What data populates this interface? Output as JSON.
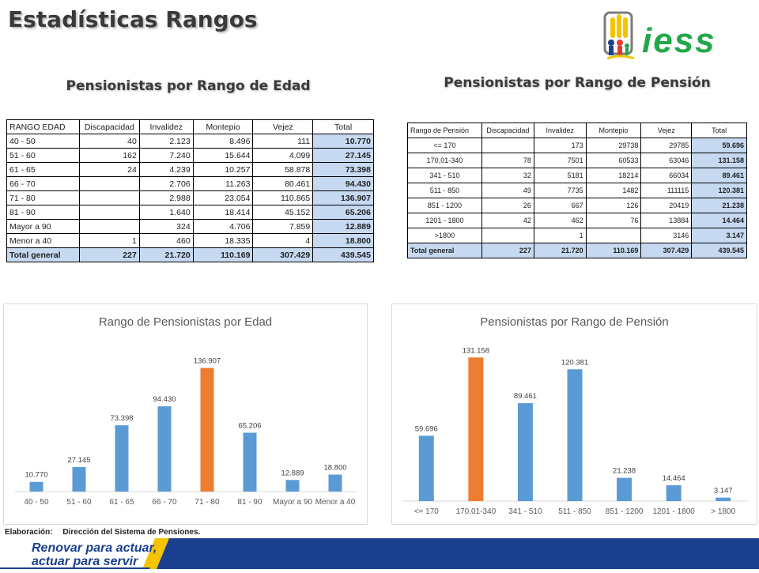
{
  "page": {
    "title": "Estadísticas Rangos",
    "logo_text": "iess",
    "footer_note_label": "Elaboración:",
    "footer_note_text": "Dirección del Sistema de Pensiones.",
    "slogan_line1": "Renovar para actuar,",
    "slogan_line2": "actuar para servir",
    "colors": {
      "bar_blue": "#5b9bd5",
      "bar_orange": "#ed7d31",
      "total_fill": "#c6d9f1",
      "banner_blue": "#1b3f8f",
      "banner_yellow": "#f5c400",
      "logo_green": "#22a849"
    }
  },
  "edad_section": {
    "title": "Pensionistas por Rango de Edad",
    "headers": [
      "RANGO EDAD",
      "Discapacidad",
      "Invalidez",
      "Montepio",
      "Vejez",
      "Total"
    ],
    "rows": [
      [
        "40 - 50",
        "40",
        "2.123",
        "8.496",
        "111",
        "10.770"
      ],
      [
        "51 - 60",
        "162",
        "7.240",
        "15.644",
        "4.099",
        "27.145"
      ],
      [
        "61 - 65",
        "24",
        "4.239",
        "10.257",
        "58.878",
        "73.398"
      ],
      [
        "66 - 70",
        "",
        "2.706",
        "11.263",
        "80.461",
        "94.430"
      ],
      [
        "71 - 80",
        "",
        "2.988",
        "23.054",
        "110.865",
        "136.907"
      ],
      [
        "81 - 90",
        "",
        "1.640",
        "18.414",
        "45.152",
        "65.206"
      ],
      [
        "Mayor a 90",
        "",
        "324",
        "4.706",
        "7.859",
        "12.889"
      ],
      [
        "Menor a 40",
        "1",
        "460",
        "18.335",
        "4",
        "18.800"
      ]
    ],
    "footer": [
      "Total general",
      "227",
      "21.720",
      "110.169",
      "307.429",
      "439.545"
    ]
  },
  "pension_section": {
    "title": "Pensionistas por Rango de Pensión",
    "headers": [
      "Rango de Pensión",
      "Discapacidad",
      "Invalidez",
      "Montepio",
      "Vejez",
      "Total"
    ],
    "rows": [
      [
        "<= 170",
        "",
        "173",
        "29738",
        "29785",
        "59.696"
      ],
      [
        "170,01-340",
        "78",
        "7501",
        "60533",
        "63046",
        "131.158"
      ],
      [
        "341 - 510",
        "32",
        "5181",
        "18214",
        "66034",
        "89.461"
      ],
      [
        "511 - 850",
        "49",
        "7735",
        "1482",
        "111115",
        "120.381"
      ],
      [
        "851 - 1200",
        "26",
        "667",
        "126",
        "20419",
        "21.238"
      ],
      [
        "1201 - 1800",
        "42",
        "462",
        "76",
        "13884",
        "14.464"
      ],
      [
        ">1800",
        "",
        "1",
        "",
        "3146",
        "3.147"
      ]
    ],
    "footer": [
      "Total general",
      "227",
      "21.720",
      "110.169",
      "307.429",
      "439.545"
    ]
  },
  "chart_data": [
    {
      "type": "bar",
      "title": "Rango de Pensionistas por Edad",
      "categories": [
        "40 - 50",
        "51 - 60",
        "61 - 65",
        "66 - 70",
        "71 - 80",
        "81 - 90",
        "Mayor a 90",
        "Menor a 40"
      ],
      "values": [
        10770,
        27145,
        73398,
        94430,
        136907,
        65206,
        12889,
        18800
      ],
      "labels": [
        "10.770",
        "27.145",
        "73.398",
        "94.430",
        "136.907",
        "65.206",
        "12.889",
        "18.800"
      ],
      "highlight_index": 4,
      "ylim": [
        0,
        140000
      ],
      "grid": false,
      "xlabel": "",
      "ylabel": ""
    },
    {
      "type": "bar",
      "title": "Pensionistas por Rango de Pensión",
      "categories": [
        "<= 170",
        "170,01-340",
        "341 - 510",
        "511 - 850",
        "851 - 1200",
        "1201 - 1800",
        "> 1800"
      ],
      "values": [
        59696,
        131158,
        89461,
        120381,
        21238,
        14464,
        3147
      ],
      "labels": [
        "59.696",
        "131.158",
        "89.461",
        "120.381",
        "21.238",
        "14.464",
        "3.147"
      ],
      "highlight_index": 1,
      "ylim": [
        0,
        135000
      ],
      "grid": false,
      "xlabel": "",
      "ylabel": ""
    }
  ]
}
